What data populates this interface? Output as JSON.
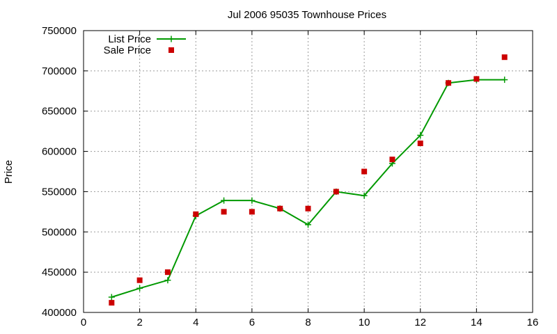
{
  "chart_data": {
    "type": "line",
    "title": "Jul 2006 95035 Townhouse Prices",
    "xlabel": "",
    "ylabel": "Price",
    "xlim": [
      0,
      16
    ],
    "ylim": [
      400000,
      750000
    ],
    "xticks": [
      0,
      2,
      4,
      6,
      8,
      10,
      12,
      14,
      16
    ],
    "yticks": [
      400000,
      450000,
      500000,
      550000,
      600000,
      650000,
      700000,
      750000
    ],
    "grid": true,
    "legend_position": "top-left",
    "series": [
      {
        "name": "List Price",
        "style": "line-plus",
        "color": "#009900",
        "x": [
          1,
          2,
          3,
          4,
          5,
          6,
          7,
          8,
          9,
          10,
          11,
          12,
          13,
          14,
          15
        ],
        "y": [
          419000,
          430000,
          440000,
          520000,
          539000,
          539000,
          529000,
          509000,
          550000,
          545000,
          585000,
          620000,
          685000,
          689000,
          689000
        ]
      },
      {
        "name": "Sale Price",
        "style": "square-points",
        "color": "#cc0000",
        "x": [
          1,
          2,
          3,
          4,
          5,
          6,
          7,
          8,
          9,
          10,
          11,
          12,
          13,
          14,
          15
        ],
        "y": [
          412000,
          440000,
          450000,
          522000,
          525000,
          525000,
          529000,
          529000,
          550000,
          575000,
          590000,
          610000,
          685000,
          690000,
          717000
        ]
      }
    ]
  }
}
